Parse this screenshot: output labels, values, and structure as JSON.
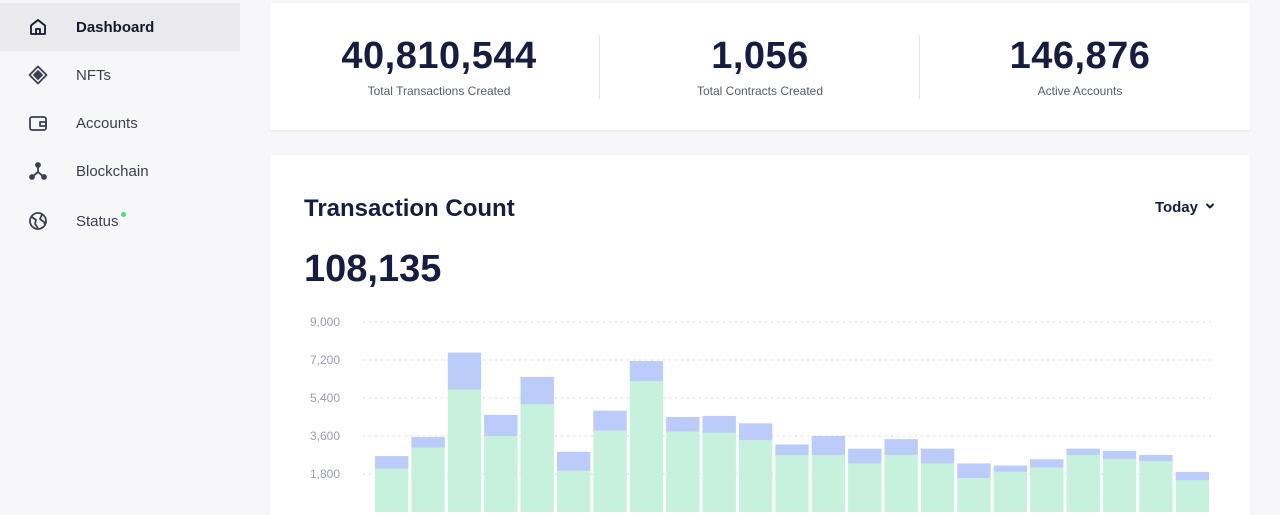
{
  "sidebar": {
    "items": [
      {
        "label": "Dashboard",
        "icon": "home-icon",
        "active": true
      },
      {
        "label": "NFTs",
        "icon": "diamond-icon"
      },
      {
        "label": "Accounts",
        "icon": "wallet-icon"
      },
      {
        "label": "Blockchain",
        "icon": "network-icon"
      },
      {
        "label": "Status",
        "icon": "globe-icon",
        "status_color": "#4ade80"
      }
    ]
  },
  "stats": [
    {
      "value": "40,810,544",
      "caption": "Total Transactions Created"
    },
    {
      "value": "1,056",
      "caption": "Total Contracts Created"
    },
    {
      "value": "146,876",
      "caption": "Active Accounts"
    }
  ],
  "transaction_chart": {
    "title": "Transaction Count",
    "period": "Today",
    "total": "108,135"
  },
  "chart_data": {
    "type": "bar",
    "stacked": true,
    "ylim": [
      0,
      9000
    ],
    "yticks": [
      "9,000",
      "7,200",
      "5,400",
      "3,600",
      "1,800"
    ],
    "ytick_values": [
      9000,
      7200,
      5400,
      3600,
      1800
    ],
    "grid": "dotted-horizontal",
    "colors": {
      "series_a": "#c6f1dc",
      "series_b": "#bcccfa"
    },
    "series": [
      {
        "values": [
          2050,
          3050,
          5800,
          3600,
          5100,
          1950,
          3850,
          6200,
          3800,
          3750,
          3400,
          2700,
          2700,
          2300,
          2700,
          2300,
          1600,
          1900,
          2100,
          2700,
          2500,
          2400,
          1500
        ]
      },
      {
        "values": [
          600,
          500,
          1750,
          1000,
          1300,
          900,
          950,
          950,
          700,
          800,
          800,
          500,
          900,
          700,
          750,
          700,
          700,
          300,
          400,
          300,
          400,
          300,
          400
        ]
      }
    ]
  }
}
